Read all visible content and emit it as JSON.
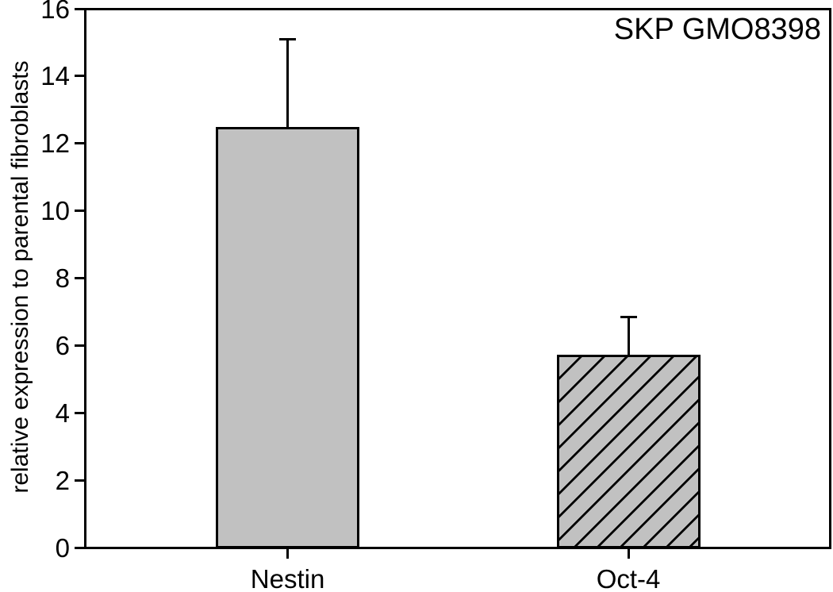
{
  "chart_data": {
    "type": "bar",
    "title": "SKP GMO8398",
    "ylabel": "relative expression to parental fibroblasts",
    "xlabel": "",
    "categories": [
      "Nestin",
      "Oct-4"
    ],
    "values": [
      12.45,
      5.7
    ],
    "errors_upper": [
      2.65,
      1.15
    ],
    "ylim": [
      0,
      16
    ],
    "yticks": [
      0,
      2,
      4,
      6,
      8,
      10,
      12,
      14,
      16
    ],
    "grid": false,
    "frame": true,
    "legend": false,
    "bar_fill": "#c1c1c1",
    "bar_edge": "#000000",
    "bar_patterns": [
      "solid",
      "diagonal-hatch"
    ],
    "error_color": "#000000"
  }
}
